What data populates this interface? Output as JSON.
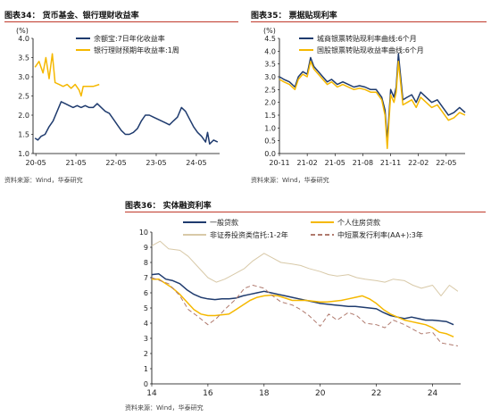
{
  "charts": [
    {
      "fig_title": "图表34： 货币基金、银行理财收益率",
      "source": "资料来源：Wind，华泰研究",
      "unit": "(%)"
    },
    {
      "fig_title": "图表35： 票据贴现利率",
      "source": "资料来源：Wind，华泰研究",
      "unit": "(%)"
    },
    {
      "fig_title": "图表36： 实体融资利率",
      "source": "资料来源：Wind，华泰研究",
      "unit": ""
    }
  ],
  "colors": {
    "navy": "#1f3b6e",
    "gold": "#f5b800",
    "tan": "#d8c9a8",
    "brown": "#b07a6e",
    "title_rule": "#c0392b"
  },
  "chart_data": [
    {
      "type": "line",
      "title": "货币基金、银行理财收益率",
      "ylabel": "(%)",
      "ylim": [
        1.0,
        4.0
      ],
      "yticks": [
        "1.0",
        "1.5",
        "2.0",
        "2.5",
        "3.0",
        "3.5",
        "4.0"
      ],
      "xticks": [
        "20-05",
        "21-05",
        "22-05",
        "23-05",
        "24-05"
      ],
      "xlim": [
        2020.3,
        2024.95
      ],
      "legend_position": "top-left",
      "series": [
        {
          "name": "余额宝:7日年化收益率",
          "color": "#1f3b6e",
          "x": [
            2020.35,
            2020.42,
            2020.5,
            2020.6,
            2020.7,
            2020.8,
            2020.9,
            2021.0,
            2021.1,
            2021.2,
            2021.3,
            2021.4,
            2021.5,
            2021.6,
            2021.7,
            2021.8,
            2021.9,
            2022.0,
            2022.1,
            2022.2,
            2022.3,
            2022.4,
            2022.5,
            2022.6,
            2022.7,
            2022.8,
            2022.9,
            2023.0,
            2023.1,
            2023.2,
            2023.3,
            2023.4,
            2023.5,
            2023.6,
            2023.7,
            2023.8,
            2023.9,
            2024.0,
            2024.1,
            2024.2,
            2024.3,
            2024.4,
            2024.5,
            2024.6,
            2024.65,
            2024.7,
            2024.8,
            2024.9
          ],
          "y": [
            1.4,
            1.35,
            1.45,
            1.5,
            1.7,
            1.85,
            2.1,
            2.35,
            2.3,
            2.25,
            2.2,
            2.25,
            2.2,
            2.25,
            2.2,
            2.2,
            2.3,
            2.2,
            2.1,
            2.05,
            1.9,
            1.75,
            1.6,
            1.5,
            1.5,
            1.55,
            1.65,
            1.85,
            2.0,
            2.0,
            1.95,
            1.9,
            1.85,
            1.8,
            1.75,
            1.85,
            1.95,
            2.2,
            2.1,
            1.9,
            1.7,
            1.55,
            1.45,
            1.3,
            1.55,
            1.25,
            1.35,
            1.3
          ]
        },
        {
          "name": "银行理财预期年收益率:1周",
          "color": "#f5b800",
          "x": [
            2020.35,
            2020.45,
            2020.55,
            2020.62,
            2020.7,
            2020.78,
            2020.85,
            2020.95,
            2021.05,
            2021.15,
            2021.25,
            2021.35,
            2021.45,
            2021.5,
            2021.55,
            2021.65,
            2021.8,
            2021.95
          ],
          "y": [
            3.25,
            3.4,
            3.1,
            3.5,
            2.95,
            3.6,
            2.85,
            2.8,
            2.75,
            2.8,
            2.7,
            2.8,
            2.65,
            2.5,
            2.75,
            2.75,
            2.75,
            2.8
          ]
        }
      ]
    },
    {
      "type": "line",
      "title": "票据贴现利率",
      "ylabel": "(%)",
      "ylim": [
        0.0,
        4.5
      ],
      "yticks": [
        "0.0",
        "0.5",
        "1.0",
        "1.5",
        "2.0",
        "2.5",
        "3.0",
        "3.5",
        "4.0",
        "4.5"
      ],
      "xticks": [
        "20-11",
        "21-02",
        "21-05",
        "21-08",
        "21-11",
        "22-02",
        "22-05"
      ],
      "xlim": [
        2020.83,
        2022.5
      ],
      "legend_position": "top-left",
      "series": [
        {
          "name": "城商银票转贴现利率曲线:6个月",
          "color": "#1f3b6e",
          "x": [
            2020.83,
            2020.87,
            2020.92,
            2020.97,
            2021.0,
            2021.04,
            2021.08,
            2021.11,
            2021.14,
            2021.18,
            2021.22,
            2021.26,
            2021.3,
            2021.35,
            2021.4,
            2021.45,
            2021.5,
            2021.55,
            2021.6,
            2021.65,
            2021.7,
            2021.75,
            2021.78,
            2021.8,
            2021.83,
            2021.86,
            2021.88,
            2021.9,
            2021.94,
            2021.98,
            2022.02,
            2022.06,
            2022.1,
            2022.15,
            2022.2,
            2022.25,
            2022.3,
            2022.35,
            2022.4,
            2022.45,
            2022.5
          ],
          "y": [
            3.0,
            2.9,
            2.8,
            2.6,
            3.0,
            3.2,
            3.1,
            3.75,
            3.4,
            3.2,
            3.0,
            2.8,
            2.9,
            2.7,
            2.8,
            2.7,
            2.6,
            2.65,
            2.6,
            2.5,
            2.5,
            2.2,
            1.7,
            0.5,
            2.5,
            2.2,
            2.6,
            3.9,
            2.1,
            2.2,
            2.3,
            2.0,
            2.4,
            2.2,
            2.0,
            2.1,
            1.8,
            1.5,
            1.6,
            1.8,
            1.6
          ]
        },
        {
          "name": "国股银票转贴现收益率曲线:6个月",
          "color": "#f5b800",
          "x": [
            2020.83,
            2020.87,
            2020.92,
            2020.97,
            2021.0,
            2021.04,
            2021.08,
            2021.11,
            2021.14,
            2021.18,
            2021.22,
            2021.26,
            2021.3,
            2021.35,
            2021.4,
            2021.45,
            2021.5,
            2021.55,
            2021.6,
            2021.65,
            2021.7,
            2021.75,
            2021.78,
            2021.8,
            2021.83,
            2021.86,
            2021.88,
            2021.9,
            2021.94,
            2021.98,
            2022.02,
            2022.06,
            2022.1,
            2022.15,
            2022.2,
            2022.25,
            2022.3,
            2022.35,
            2022.4,
            2022.45,
            2022.5
          ],
          "y": [
            2.9,
            2.8,
            2.7,
            2.5,
            2.9,
            3.1,
            3.0,
            3.6,
            3.3,
            3.1,
            2.9,
            2.7,
            2.8,
            2.6,
            2.7,
            2.6,
            2.5,
            2.55,
            2.5,
            2.4,
            2.4,
            2.1,
            1.5,
            0.2,
            2.3,
            2.0,
            2.4,
            3.6,
            1.9,
            2.0,
            2.1,
            1.8,
            2.2,
            2.0,
            1.8,
            1.9,
            1.6,
            1.3,
            1.4,
            1.6,
            1.5
          ]
        }
      ]
    },
    {
      "type": "line",
      "title": "实体融资利率",
      "ylabel": "",
      "ylim": [
        0,
        10
      ],
      "yticks": [
        "0",
        "1",
        "2",
        "3",
        "4",
        "5",
        "6",
        "7",
        "8",
        "9",
        "10"
      ],
      "xticks": [
        "14",
        "16",
        "18",
        "20",
        "22",
        "24"
      ],
      "xlim": [
        14,
        25
      ],
      "legend_position": "top",
      "series": [
        {
          "name": "一般贷款",
          "color": "#1f3b6e",
          "dash": "solid",
          "x": [
            14.0,
            14.25,
            14.5,
            14.75,
            15.0,
            15.25,
            15.5,
            15.75,
            16.0,
            16.25,
            16.5,
            16.75,
            17.0,
            17.25,
            17.5,
            17.75,
            18.0,
            18.25,
            18.5,
            18.75,
            19.0,
            19.25,
            19.5,
            19.75,
            20.0,
            20.25,
            20.5,
            20.75,
            21.0,
            21.25,
            21.5,
            21.75,
            22.0,
            22.25,
            22.5,
            22.75,
            23.0,
            23.25,
            23.5,
            23.75,
            24.0,
            24.25,
            24.5,
            24.75
          ],
          "y": [
            7.2,
            7.25,
            6.9,
            6.8,
            6.6,
            6.2,
            5.9,
            5.7,
            5.6,
            5.55,
            5.6,
            5.6,
            5.65,
            5.8,
            5.9,
            6.0,
            6.1,
            6.0,
            5.9,
            5.8,
            5.7,
            5.6,
            5.5,
            5.4,
            5.3,
            5.25,
            5.2,
            5.15,
            5.1,
            5.1,
            5.05,
            5.0,
            4.95,
            4.7,
            4.5,
            4.4,
            4.3,
            4.4,
            4.3,
            4.2,
            4.2,
            4.15,
            4.1,
            3.9
          ]
        },
        {
          "name": "个人住房贷款",
          "color": "#f5b800",
          "dash": "solid",
          "x": [
            14.0,
            14.25,
            14.5,
            14.75,
            15.0,
            15.25,
            15.5,
            15.75,
            16.0,
            16.25,
            16.5,
            16.75,
            17.0,
            17.25,
            17.5,
            17.75,
            18.0,
            18.25,
            18.5,
            18.75,
            19.0,
            19.25,
            19.5,
            19.75,
            20.0,
            20.25,
            20.5,
            20.75,
            21.0,
            21.25,
            21.5,
            21.75,
            22.0,
            22.25,
            22.5,
            22.75,
            23.0,
            23.25,
            23.5,
            23.75,
            24.0,
            24.25,
            24.5,
            24.75
          ],
          "y": [
            6.9,
            6.9,
            6.6,
            6.3,
            5.9,
            5.4,
            4.9,
            4.6,
            4.5,
            4.5,
            4.55,
            4.6,
            4.9,
            5.2,
            5.5,
            5.7,
            5.8,
            5.85,
            5.8,
            5.65,
            5.5,
            5.5,
            5.5,
            5.45,
            5.4,
            5.4,
            5.45,
            5.5,
            5.6,
            5.7,
            5.8,
            5.6,
            5.3,
            4.9,
            4.6,
            4.4,
            4.2,
            4.1,
            4.0,
            3.9,
            3.7,
            3.4,
            3.3,
            3.1
          ]
        },
        {
          "name": "非证券投资类信托:1-2年",
          "color": "#d8c9a8",
          "dash": "solid",
          "x": [
            14.0,
            14.3,
            14.6,
            15.0,
            15.3,
            15.6,
            16.0,
            16.3,
            16.6,
            17.0,
            17.3,
            17.6,
            18.0,
            18.3,
            18.6,
            19.0,
            19.3,
            19.6,
            20.0,
            20.3,
            20.6,
            21.0,
            21.3,
            21.6,
            22.0,
            22.3,
            22.6,
            23.0,
            23.3,
            23.6,
            24.0,
            24.3,
            24.6,
            24.9
          ],
          "y": [
            9.1,
            9.4,
            8.9,
            8.8,
            8.4,
            7.8,
            7.0,
            6.7,
            6.9,
            7.3,
            7.6,
            8.1,
            8.6,
            8.3,
            8.0,
            7.9,
            7.8,
            7.6,
            7.4,
            7.2,
            7.1,
            7.2,
            7.0,
            6.9,
            6.8,
            6.7,
            6.9,
            6.8,
            6.5,
            6.3,
            6.5,
            5.8,
            6.5,
            6.1
          ]
        },
        {
          "name": "中短票发行利率(AA+):3年",
          "color": "#b07a6e",
          "dash": "dashed",
          "x": [
            14.0,
            14.3,
            14.6,
            15.0,
            15.3,
            15.6,
            16.0,
            16.3,
            16.6,
            17.0,
            17.3,
            17.6,
            18.0,
            18.3,
            18.6,
            19.0,
            19.3,
            19.6,
            20.0,
            20.3,
            20.6,
            21.0,
            21.3,
            21.6,
            22.0,
            22.3,
            22.6,
            23.0,
            23.3,
            23.6,
            24.0,
            24.3,
            24.6,
            24.9
          ],
          "y": [
            7.0,
            6.8,
            6.6,
            5.8,
            4.9,
            4.5,
            3.9,
            4.3,
            4.9,
            5.6,
            6.3,
            6.5,
            6.3,
            5.8,
            5.4,
            5.2,
            4.9,
            4.5,
            3.8,
            4.6,
            4.2,
            4.7,
            4.5,
            4.0,
            3.9,
            3.7,
            4.2,
            3.9,
            3.6,
            3.3,
            3.4,
            2.7,
            2.6,
            2.5
          ]
        }
      ]
    }
  ]
}
